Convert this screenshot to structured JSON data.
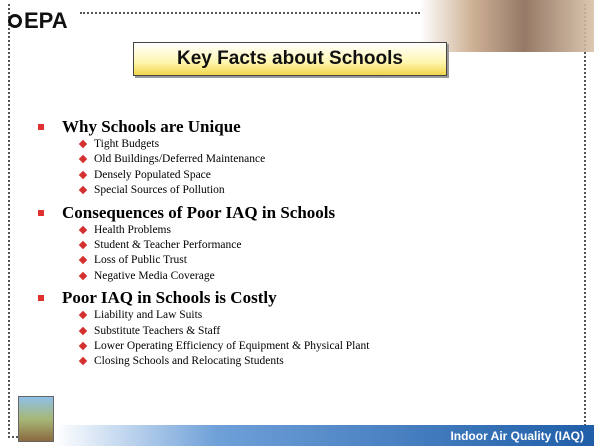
{
  "header": {
    "logo": "EPA",
    "title": "Key Facts about Schools"
  },
  "sections": [
    {
      "heading": "Why Schools are Unique",
      "items": [
        "Tight Budgets",
        "Old Buildings/Deferred Maintenance",
        "Densely Populated Space",
        "Special Sources of Pollution"
      ]
    },
    {
      "heading": "Consequences of Poor IAQ in Schools",
      "items": [
        "Health Problems",
        "Student & Teacher Performance",
        "Loss of Public Trust",
        "Negative Media Coverage"
      ]
    },
    {
      "heading": "Poor IAQ in Schools is Costly",
      "items": [
        "Liability and Law Suits",
        "Substitute Teachers & Staff",
        "Lower Operating Efficiency of Equipment & Physical Plant",
        "Closing Schools and Relocating Students"
      ]
    }
  ],
  "footer": {
    "label": "Indoor Air Quality (IAQ)"
  }
}
